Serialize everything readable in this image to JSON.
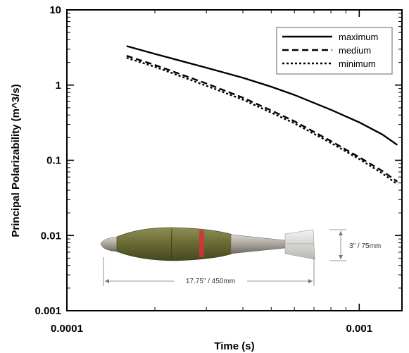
{
  "chart_data": {
    "type": "line",
    "xscale": "log",
    "yscale": "log",
    "xlim": [
      0.0001,
      0.0014
    ],
    "ylim": [
      0.001,
      10
    ],
    "xlabel": "Time (s)",
    "ylabel": "Principal Polarizability (m^3/s)",
    "xticks": [
      {
        "value": 0.0001,
        "label": "0.0001"
      },
      {
        "value": 0.001,
        "label": "0.001"
      }
    ],
    "yticks": [
      {
        "value": 10,
        "label": "10"
      },
      {
        "value": 1,
        "label": "1"
      },
      {
        "value": 0.1,
        "label": "0.1"
      },
      {
        "value": 0.01,
        "label": "0.01"
      },
      {
        "value": 0.001,
        "label": "0.001"
      }
    ],
    "grid": false,
    "legend": "top-right",
    "series": [
      {
        "name": "maximum",
        "style": "solid",
        "x": [
          0.00016,
          0.0002,
          0.0003,
          0.0004,
          0.0005,
          0.0006,
          0.0008,
          0.001,
          0.0012,
          0.00135
        ],
        "y": [
          3.3,
          2.6,
          1.7,
          1.25,
          0.95,
          0.74,
          0.47,
          0.32,
          0.22,
          0.16
        ]
      },
      {
        "name": "medium",
        "style": "dashed",
        "x": [
          0.00016,
          0.0002,
          0.0003,
          0.0004,
          0.0005,
          0.0006,
          0.0008,
          0.001,
          0.0012,
          0.00135
        ],
        "y": [
          2.45,
          1.85,
          1.05,
          0.68,
          0.46,
          0.33,
          0.18,
          0.11,
          0.072,
          0.052
        ]
      },
      {
        "name": "minimum",
        "style": "dotted",
        "x": [
          0.00016,
          0.0002,
          0.0003,
          0.0004,
          0.0005,
          0.0006,
          0.0008,
          0.001,
          0.0012,
          0.00135
        ],
        "y": [
          2.3,
          1.75,
          0.98,
          0.64,
          0.43,
          0.31,
          0.17,
          0.104,
          0.067,
          0.048
        ]
      }
    ]
  },
  "inset": {
    "object": "mortar-round",
    "length_label": "17.75\" / 450mm",
    "diameter_label": "3\" / 75mm"
  }
}
